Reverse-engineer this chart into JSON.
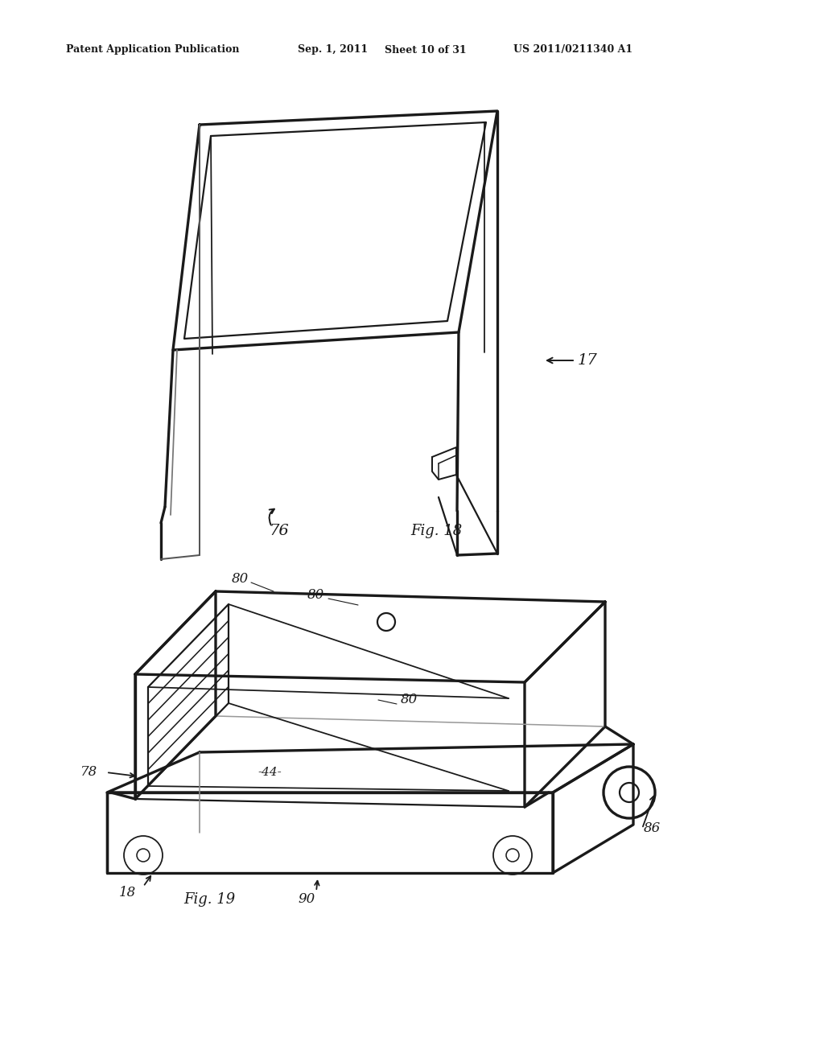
{
  "bg_color": "#ffffff",
  "header_text": "Patent Application Publication",
  "header_date": "Sep. 1, 2011",
  "header_sheet": "Sheet 10 of 31",
  "header_patent": "US 2011/0211340 A1",
  "fig18_label": "Fig. 18",
  "fig19_label": "Fig. 19",
  "label_17": "17",
  "label_76": "76",
  "label_18": "18",
  "label_44": "-44-",
  "label_78": "78",
  "label_80": "80",
  "label_86": "86",
  "label_90": "90",
  "lc": "#1a1a1a",
  "lw": 1.6,
  "tlw": 2.4
}
